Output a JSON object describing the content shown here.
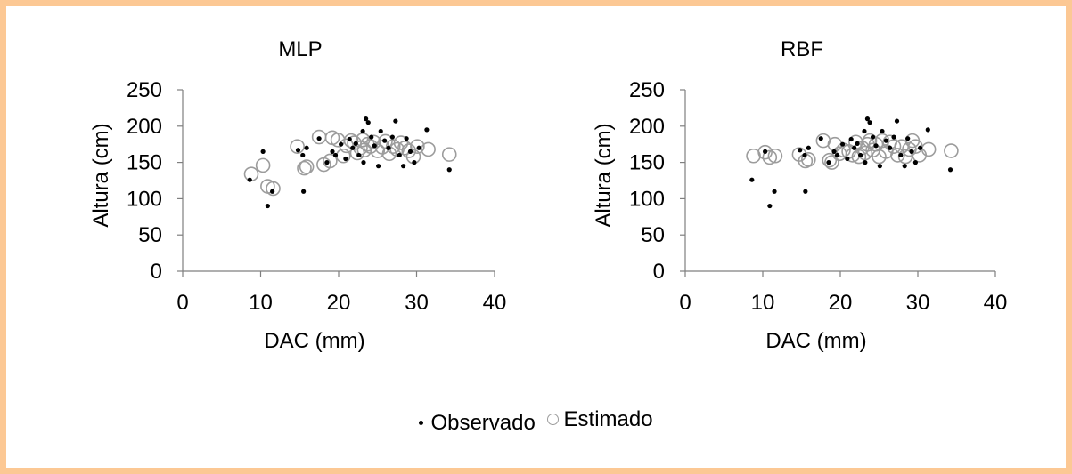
{
  "colors": {
    "background": "#fcc894",
    "observed": "#000000",
    "estimated": "#9c9c9c"
  },
  "legend": {
    "observed": "Observado",
    "estimated": "Estimado"
  },
  "chart_data": [
    {
      "type": "scatter",
      "title": "MLP",
      "xlabel": "DAC (mm)",
      "ylabel": "Altura (cm)",
      "xlim": [
        0,
        40
      ],
      "ylim": [
        0,
        250
      ],
      "xticks": [
        "0",
        "10",
        "20",
        "30",
        "40"
      ],
      "yticks": [
        "0",
        "50",
        "100",
        "150",
        "200",
        "250"
      ],
      "grid": false,
      "series": [
        {
          "name": "Observado",
          "points": [
            [
              8.6,
              126
            ],
            [
              10.3,
              165
            ],
            [
              10.9,
              90
            ],
            [
              11.5,
              110
            ],
            [
              14.8,
              167
            ],
            [
              15.5,
              110
            ],
            [
              15.4,
              160
            ],
            [
              15.9,
              170
            ],
            [
              17.5,
              183
            ],
            [
              18.5,
              150
            ],
            [
              19.2,
              165
            ],
            [
              19.6,
              160
            ],
            [
              20.3,
              175
            ],
            [
              20.9,
              155
            ],
            [
              21.4,
              182
            ],
            [
              21.8,
              170
            ],
            [
              22.2,
              176
            ],
            [
              22.6,
              160
            ],
            [
              23.1,
              193
            ],
            [
              23.2,
              150
            ],
            [
              23.5,
              210
            ],
            [
              23.8,
              205
            ],
            [
              24.2,
              185
            ],
            [
              24.6,
              173
            ],
            [
              25.1,
              145
            ],
            [
              25.4,
              193
            ],
            [
              25.9,
              180
            ],
            [
              26.4,
              170
            ],
            [
              26.9,
              185
            ],
            [
              27.3,
              207
            ],
            [
              27.8,
              160
            ],
            [
              28.3,
              145
            ],
            [
              28.7,
              183
            ],
            [
              29.2,
              165
            ],
            [
              29.7,
              150
            ],
            [
              30.3,
              170
            ],
            [
              31.3,
              195
            ],
            [
              34.2,
              140
            ]
          ]
        },
        {
          "name": "Estimado",
          "points": [
            [
              8.8,
              134
            ],
            [
              10.3,
              146
            ],
            [
              10.9,
              117
            ],
            [
              11.6,
              114
            ],
            [
              14.7,
              172
            ],
            [
              15.6,
              142
            ],
            [
              15.9,
              144
            ],
            [
              17.5,
              185
            ],
            [
              18.1,
              147
            ],
            [
              18.9,
              152
            ],
            [
              19.2,
              184
            ],
            [
              19.9,
              181
            ],
            [
              20.6,
              159
            ],
            [
              21.0,
              173
            ],
            [
              21.6,
              180
            ],
            [
              22.0,
              177
            ],
            [
              22.4,
              163
            ],
            [
              22.8,
              170
            ],
            [
              23.1,
              181
            ],
            [
              23.3,
              167
            ],
            [
              23.7,
              175
            ],
            [
              24.1,
              172
            ],
            [
              24.5,
              178
            ],
            [
              25.0,
              166
            ],
            [
              25.6,
              171
            ],
            [
              26.0,
              179
            ],
            [
              26.5,
              162
            ],
            [
              27.0,
              172
            ],
            [
              27.5,
              168
            ],
            [
              28.0,
              177
            ],
            [
              28.5,
              170
            ],
            [
              29.0,
              166
            ],
            [
              29.6,
              158
            ],
            [
              30.1,
              172
            ],
            [
              31.5,
              168
            ],
            [
              34.2,
              161
            ]
          ]
        }
      ]
    },
    {
      "type": "scatter",
      "title": "RBF",
      "xlabel": "DAC (mm)",
      "ylabel": "Altura (cm)",
      "xlim": [
        0,
        40
      ],
      "ylim": [
        0,
        250
      ],
      "xticks": [
        "0",
        "10",
        "20",
        "30",
        "40"
      ],
      "yticks": [
        "0",
        "50",
        "100",
        "150",
        "200",
        "250"
      ],
      "grid": false,
      "series": [
        {
          "name": "Observado",
          "points": [
            [
              8.6,
              126
            ],
            [
              10.3,
              165
            ],
            [
              10.9,
              90
            ],
            [
              11.5,
              110
            ],
            [
              14.8,
              167
            ],
            [
              15.5,
              110
            ],
            [
              15.4,
              160
            ],
            [
              15.9,
              170
            ],
            [
              17.5,
              183
            ],
            [
              18.5,
              150
            ],
            [
              19.2,
              165
            ],
            [
              19.6,
              160
            ],
            [
              20.3,
              175
            ],
            [
              20.9,
              155
            ],
            [
              21.4,
              182
            ],
            [
              21.8,
              170
            ],
            [
              22.2,
              176
            ],
            [
              22.6,
              160
            ],
            [
              23.1,
              193
            ],
            [
              23.2,
              150
            ],
            [
              23.5,
              210
            ],
            [
              23.8,
              205
            ],
            [
              24.2,
              185
            ],
            [
              24.6,
              173
            ],
            [
              25.1,
              145
            ],
            [
              25.4,
              193
            ],
            [
              25.9,
              180
            ],
            [
              26.4,
              170
            ],
            [
              26.9,
              185
            ],
            [
              27.3,
              207
            ],
            [
              27.8,
              160
            ],
            [
              28.3,
              145
            ],
            [
              28.7,
              183
            ],
            [
              29.2,
              165
            ],
            [
              29.7,
              150
            ],
            [
              30.3,
              170
            ],
            [
              31.3,
              195
            ],
            [
              34.2,
              140
            ]
          ]
        },
        {
          "name": "Estimado",
          "points": [
            [
              8.8,
              159
            ],
            [
              10.3,
              164
            ],
            [
              10.9,
              157
            ],
            [
              11.6,
              159
            ],
            [
              14.7,
              161
            ],
            [
              15.5,
              152
            ],
            [
              15.9,
              154
            ],
            [
              17.8,
              180
            ],
            [
              18.6,
              153
            ],
            [
              18.9,
              150
            ],
            [
              19.3,
              175
            ],
            [
              19.9,
              162
            ],
            [
              20.4,
              167
            ],
            [
              21.1,
              165
            ],
            [
              21.6,
              160
            ],
            [
              22.0,
              178
            ],
            [
              22.4,
              158
            ],
            [
              22.8,
              170
            ],
            [
              23.2,
              163
            ],
            [
              23.5,
              175
            ],
            [
              23.8,
              180
            ],
            [
              24.2,
              167
            ],
            [
              24.6,
              175
            ],
            [
              25.0,
              158
            ],
            [
              25.4,
              180
            ],
            [
              25.9,
              165
            ],
            [
              26.4,
              178
            ],
            [
              26.9,
              172
            ],
            [
              27.4,
              160
            ],
            [
              27.9,
              172
            ],
            [
              28.4,
              158
            ],
            [
              28.9,
              168
            ],
            [
              29.3,
              180
            ],
            [
              29.7,
              172
            ],
            [
              30.2,
              160
            ],
            [
              31.4,
              168
            ],
            [
              34.3,
              166
            ]
          ]
        }
      ]
    }
  ]
}
